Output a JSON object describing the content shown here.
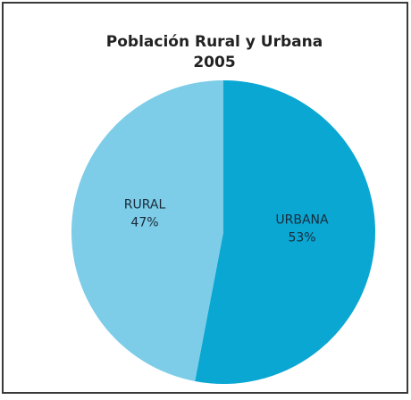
{
  "chart_data": {
    "type": "pie",
    "title": "Población Rural y Urbana",
    "subtitle": "2005",
    "categories": [
      "URBANA",
      "RURAL"
    ],
    "values": [
      53,
      47
    ],
    "value_labels": [
      "53%",
      "47%"
    ],
    "colors": [
      "#0aa7d3",
      "#7dcde8"
    ]
  }
}
